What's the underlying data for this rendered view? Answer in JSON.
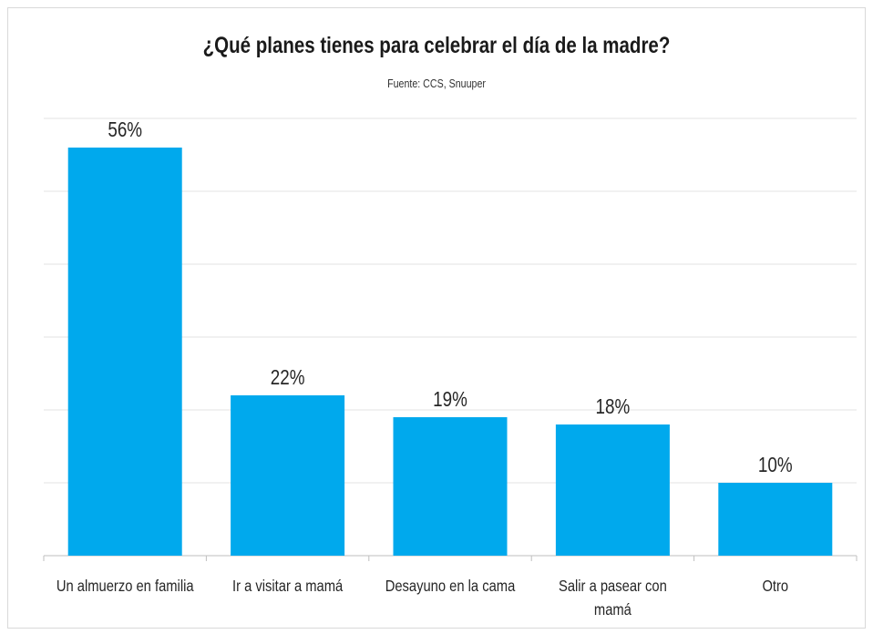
{
  "chart_data": {
    "type": "bar",
    "title": "¿Qué planes tienes para celebrar el día de la madre?",
    "subtitle": "Fuente: CCS, Snuuper",
    "categories": [
      [
        "Un almuerzo en familia"
      ],
      [
        "Ir a visitar a mamá"
      ],
      [
        "Desayuno en la cama"
      ],
      [
        "Salir a pasear con",
        "mamá"
      ],
      [
        "Otro"
      ]
    ],
    "values": [
      56,
      22,
      19,
      18,
      10
    ],
    "value_labels": [
      "56%",
      "22%",
      "19%",
      "18%",
      "10%"
    ],
    "ylim": [
      0,
      60
    ],
    "grid": true,
    "bar_color": "#00a9ed",
    "xlabel": "",
    "ylabel": ""
  }
}
